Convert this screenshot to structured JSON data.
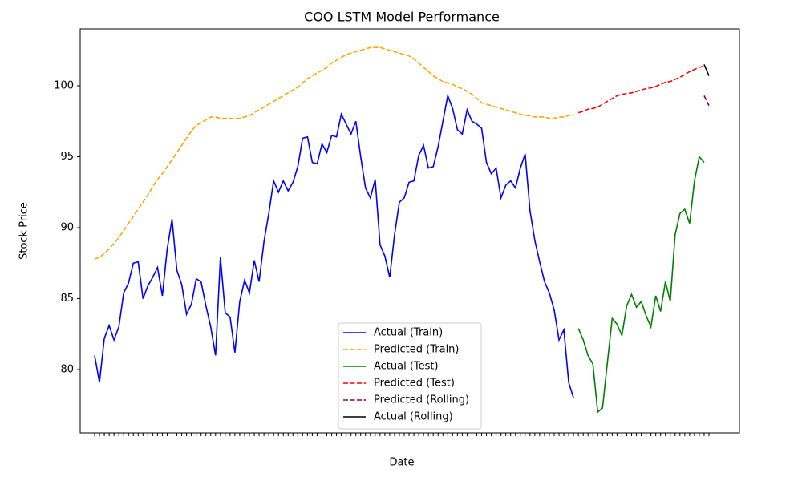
{
  "chart_data": {
    "type": "line",
    "title": "COO LSTM Model Performance",
    "x_label": "Date",
    "y_label": "Stock Price",
    "categories": [
      null,
      null,
      null,
      null,
      null,
      null,
      null,
      null,
      null,
      null,
      null,
      null,
      null,
      null,
      null,
      null,
      null,
      null,
      null,
      null,
      null,
      null,
      null,
      null,
      null,
      null,
      null,
      null,
      null,
      null,
      null,
      null,
      null,
      null,
      null,
      null,
      null,
      null,
      null,
      null,
      null,
      null,
      null,
      null,
      null,
      null,
      null,
      null,
      null,
      null,
      null,
      null,
      null,
      null,
      null,
      null,
      null,
      null,
      null,
      null,
      null,
      null,
      null,
      null,
      null,
      null,
      null,
      null,
      null,
      null,
      null,
      null,
      null,
      null,
      null,
      null,
      null,
      null,
      null,
      null,
      null,
      null,
      null,
      null,
      null,
      null,
      null,
      null,
      null,
      null,
      null,
      null,
      null,
      null,
      null,
      null,
      null,
      null,
      null,
      null,
      null,
      null,
      null,
      null,
      null,
      null,
      null,
      null,
      null,
      null,
      null,
      null,
      null,
      null,
      null,
      null,
      null,
      null,
      null,
      null,
      null,
      null,
      null,
      null,
      null,
      null,
      null,
      null
    ],
    "ylim": [
      75.54,
      104.01
    ],
    "yticks": [
      80,
      85,
      90,
      95,
      100
    ],
    "grid": false,
    "legend": "lower center",
    "series": [
      {
        "name": "Actual (Train)",
        "color": "#0000ff",
        "linestyle": "solid",
        "values": [
          81.0,
          79.1,
          82.2,
          83.1,
          82.1,
          83.0,
          85.4,
          86.1,
          87.5,
          87.6,
          85.0,
          85.9,
          86.5,
          87.2,
          85.2,
          88.5,
          90.6,
          87.0,
          86.0,
          83.9,
          84.6,
          86.4,
          86.2,
          84.5,
          83.0,
          81.0,
          87.9,
          84.0,
          83.7,
          81.2,
          84.8,
          86.3,
          85.4,
          87.7,
          86.2,
          89.0,
          91.0,
          93.3,
          92.5,
          93.3,
          92.6,
          93.2,
          94.3,
          96.3,
          96.4,
          94.6,
          94.5,
          95.9,
          95.3,
          96.5,
          96.4,
          98.0,
          97.3,
          96.6,
          97.5,
          95.0,
          92.8,
          92.1,
          93.4,
          88.8,
          88.0,
          86.5,
          89.5,
          91.8,
          92.1,
          93.2,
          93.3,
          95.1,
          95.8,
          94.2,
          94.3,
          95.7,
          97.5,
          99.3,
          98.4,
          96.9,
          96.6,
          98.3,
          97.5,
          97.3,
          97.0,
          94.6,
          93.8,
          94.2,
          92.1,
          93.0,
          93.3,
          92.8,
          94.2,
          95.2,
          91.2,
          89.1,
          87.6,
          86.2,
          85.4,
          84.2,
          82.1,
          82.8,
          79.1,
          78.0,
          null,
          null,
          null,
          null,
          null,
          null,
          null,
          null,
          null,
          null,
          null,
          null,
          null,
          null,
          null,
          null,
          null,
          null,
          null,
          null,
          null,
          null,
          null,
          null,
          null,
          null,
          null,
          null
        ]
      },
      {
        "name": "Predicted (Train)",
        "color": "#ffa500",
        "linestyle": "dashed",
        "values": [
          87.8,
          87.9,
          88.2,
          88.5,
          88.9,
          89.3,
          89.8,
          90.3,
          90.8,
          91.3,
          91.8,
          92.3,
          92.9,
          93.4,
          93.8,
          94.3,
          94.8,
          95.3,
          95.8,
          96.3,
          96.8,
          97.2,
          97.4,
          97.6,
          97.8,
          97.8,
          97.7,
          97.7,
          97.7,
          97.7,
          97.7,
          97.8,
          97.9,
          98.1,
          98.3,
          98.5,
          98.7,
          98.9,
          99.1,
          99.3,
          99.5,
          99.7,
          99.9,
          100.2,
          100.5,
          100.7,
          100.9,
          101.1,
          101.3,
          101.6,
          101.8,
          102.0,
          102.2,
          102.3,
          102.4,
          102.5,
          102.6,
          102.7,
          102.7,
          102.7,
          102.6,
          102.5,
          102.4,
          102.3,
          102.2,
          102.1,
          101.9,
          101.6,
          101.3,
          101.0,
          100.7,
          100.5,
          100.3,
          100.2,
          100.1,
          99.9,
          99.8,
          99.6,
          99.4,
          99.1,
          98.8,
          98.7,
          98.6,
          98.5,
          98.4,
          98.3,
          98.2,
          98.1,
          98.0,
          97.9,
          97.9,
          97.8,
          97.8,
          97.8,
          97.7,
          97.7,
          97.8,
          97.8,
          97.9,
          98.0,
          null,
          null,
          null,
          null,
          null,
          null,
          null,
          null,
          null,
          null,
          null,
          null,
          null,
          null,
          null,
          null,
          null,
          null,
          null,
          null,
          null,
          null,
          null,
          null,
          null,
          null,
          null,
          null
        ]
      },
      {
        "name": "Actual (Test)",
        "color": "#008000",
        "linestyle": "solid",
        "values": [
          null,
          null,
          null,
          null,
          null,
          null,
          null,
          null,
          null,
          null,
          null,
          null,
          null,
          null,
          null,
          null,
          null,
          null,
          null,
          null,
          null,
          null,
          null,
          null,
          null,
          null,
          null,
          null,
          null,
          null,
          null,
          null,
          null,
          null,
          null,
          null,
          null,
          null,
          null,
          null,
          null,
          null,
          null,
          null,
          null,
          null,
          null,
          null,
          null,
          null,
          null,
          null,
          null,
          null,
          null,
          null,
          null,
          null,
          null,
          null,
          null,
          null,
          null,
          null,
          null,
          null,
          null,
          null,
          null,
          null,
          null,
          null,
          null,
          null,
          null,
          null,
          null,
          null,
          null,
          null,
          null,
          null,
          null,
          null,
          null,
          null,
          null,
          null,
          null,
          null,
          null,
          null,
          null,
          null,
          null,
          null,
          null,
          null,
          null,
          null,
          82.9,
          82.1,
          81.0,
          80.4,
          77.0,
          77.3,
          80.5,
          83.6,
          83.2,
          82.4,
          84.5,
          85.3,
          84.4,
          84.8,
          83.8,
          83.0,
          85.2,
          84.1,
          86.2,
          84.8,
          89.5,
          91.0,
          91.3,
          90.3,
          93.3,
          95.0,
          94.6,
          null
        ]
      },
      {
        "name": "Predicted (Test)",
        "color": "#ff0000",
        "linestyle": "dashed",
        "values": [
          null,
          null,
          null,
          null,
          null,
          null,
          null,
          null,
          null,
          null,
          null,
          null,
          null,
          null,
          null,
          null,
          null,
          null,
          null,
          null,
          null,
          null,
          null,
          null,
          null,
          null,
          null,
          null,
          null,
          null,
          null,
          null,
          null,
          null,
          null,
          null,
          null,
          null,
          null,
          null,
          null,
          null,
          null,
          null,
          null,
          null,
          null,
          null,
          null,
          null,
          null,
          null,
          null,
          null,
          null,
          null,
          null,
          null,
          null,
          null,
          null,
          null,
          null,
          null,
          null,
          null,
          null,
          null,
          null,
          null,
          null,
          null,
          null,
          null,
          null,
          null,
          null,
          null,
          null,
          null,
          null,
          null,
          null,
          null,
          null,
          null,
          null,
          null,
          null,
          null,
          null,
          null,
          null,
          null,
          null,
          null,
          null,
          null,
          null,
          null,
          98.1,
          98.2,
          98.35,
          98.4,
          98.5,
          98.7,
          98.9,
          99.1,
          99.3,
          99.4,
          99.45,
          99.5,
          99.6,
          99.7,
          99.8,
          99.85,
          99.95,
          100.1,
          100.25,
          100.3,
          100.45,
          100.6,
          100.8,
          101.0,
          101.15,
          101.3,
          101.4,
          null
        ]
      },
      {
        "name": "Predicted (Rolling)",
        "color": "#800080",
        "linestyle": "dashed",
        "values": [
          null,
          null,
          null,
          null,
          null,
          null,
          null,
          null,
          null,
          null,
          null,
          null,
          null,
          null,
          null,
          null,
          null,
          null,
          null,
          null,
          null,
          null,
          null,
          null,
          null,
          null,
          null,
          null,
          null,
          null,
          null,
          null,
          null,
          null,
          null,
          null,
          null,
          null,
          null,
          null,
          null,
          null,
          null,
          null,
          null,
          null,
          null,
          null,
          null,
          null,
          null,
          null,
          null,
          null,
          null,
          null,
          null,
          null,
          null,
          null,
          null,
          null,
          null,
          null,
          null,
          null,
          null,
          null,
          null,
          null,
          null,
          null,
          null,
          null,
          null,
          null,
          null,
          null,
          null,
          null,
          null,
          null,
          null,
          null,
          null,
          null,
          null,
          null,
          null,
          null,
          null,
          null,
          null,
          null,
          null,
          null,
          null,
          null,
          null,
          null,
          null,
          null,
          null,
          null,
          null,
          null,
          null,
          null,
          null,
          null,
          null,
          null,
          null,
          null,
          null,
          null,
          null,
          null,
          null,
          null,
          null,
          null,
          null,
          null,
          null,
          null,
          99.3,
          98.6
        ]
      },
      {
        "name": "Actual (Rolling)",
        "color": "#000000",
        "linestyle": "solid",
        "values": [
          null,
          null,
          null,
          null,
          null,
          null,
          null,
          null,
          null,
          null,
          null,
          null,
          null,
          null,
          null,
          null,
          null,
          null,
          null,
          null,
          null,
          null,
          null,
          null,
          null,
          null,
          null,
          null,
          null,
          null,
          null,
          null,
          null,
          null,
          null,
          null,
          null,
          null,
          null,
          null,
          null,
          null,
          null,
          null,
          null,
          null,
          null,
          null,
          null,
          null,
          null,
          null,
          null,
          null,
          null,
          null,
          null,
          null,
          null,
          null,
          null,
          null,
          null,
          null,
          null,
          null,
          null,
          null,
          null,
          null,
          null,
          null,
          null,
          null,
          null,
          null,
          null,
          null,
          null,
          null,
          null,
          null,
          null,
          null,
          null,
          null,
          null,
          null,
          null,
          null,
          null,
          null,
          null,
          null,
          null,
          null,
          null,
          null,
          null,
          null,
          null,
          null,
          null,
          null,
          null,
          null,
          null,
          null,
          null,
          null,
          null,
          null,
          null,
          null,
          null,
          null,
          null,
          null,
          null,
          null,
          null,
          null,
          null,
          null,
          null,
          null,
          101.5,
          100.7
        ]
      }
    ]
  }
}
